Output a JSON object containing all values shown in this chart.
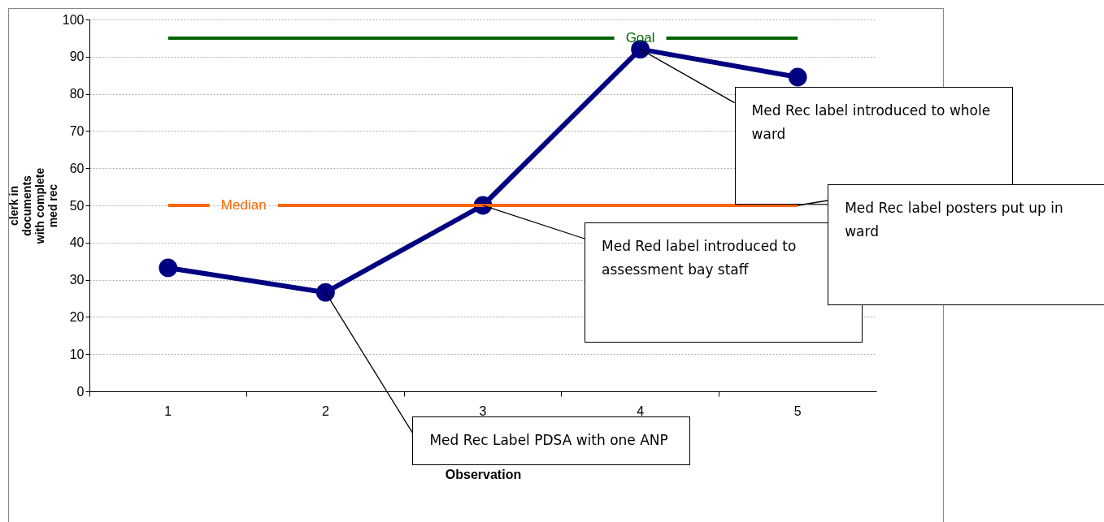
{
  "chart_data": {
    "type": "line",
    "xlabel": "Observation",
    "ylabel": "clerk in documents with complete med rec",
    "categories": [
      "1",
      "2",
      "3",
      "4",
      "5"
    ],
    "series": [
      {
        "color": "#000080",
        "values": [
          33.2,
          26.6,
          50,
          92,
          84.5
        ]
      }
    ],
    "ylim": [
      0,
      100
    ],
    "yticks": [
      0,
      10,
      20,
      30,
      40,
      50,
      60,
      70,
      80,
      90,
      100
    ],
    "grid": "y",
    "marker": "circle",
    "line_style": "solid",
    "ref_lines": [
      {
        "axis": "y",
        "value": 95,
        "label": "Goal",
        "color": "#006400"
      },
      {
        "axis": "y",
        "value": 50,
        "label": "Median",
        "color": "#ff6600"
      }
    ],
    "annotations": [
      {
        "text": "Med Rec Label  PDSA with one ANP",
        "x": "2",
        "y": 26.6
      },
      {
        "text": "Med Red label introduced to assessment bay staff",
        "x": "3",
        "y": 50
      },
      {
        "text": "Med Rec label introduced to whole ward",
        "x": "4",
        "y": 92
      },
      {
        "text": "Med Rec label posters put up in ward",
        "x": "5",
        "y": 50
      }
    ]
  }
}
